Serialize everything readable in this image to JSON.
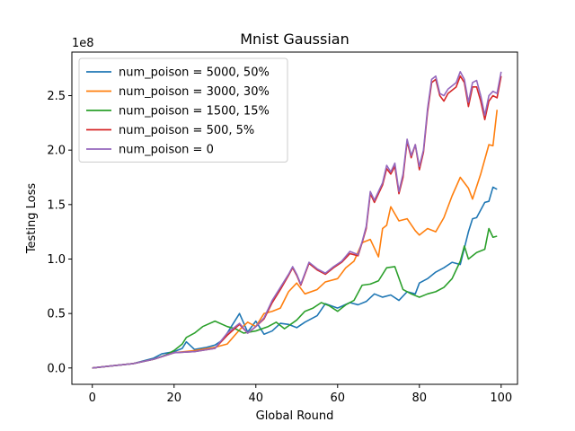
{
  "chart_data": {
    "type": "line",
    "title": "Mnist Gaussian",
    "xlabel": "Global Round",
    "ylabel": "Testing Loss",
    "y_offset_label": "1e8",
    "y_multiplier": 100000000,
    "xlim": [
      -5,
      104
    ],
    "ylim": [
      -15000000,
      290000000
    ],
    "x_ticks": [
      0,
      20,
      40,
      60,
      80,
      100
    ],
    "x_tick_labels": [
      "0",
      "20",
      "40",
      "60",
      "80",
      "100"
    ],
    "y_ticks": [
      0,
      50000000,
      100000000,
      150000000,
      200000000,
      250000000
    ],
    "y_tick_labels": [
      "0.0",
      "0.5",
      "1.0",
      "1.5",
      "2.0",
      "2.5"
    ],
    "legend_position": "top-left",
    "grid": false,
    "series": [
      {
        "name": "num_poison = 5000, 50%",
        "color": "#1f77b4",
        "keypoints": [
          [
            0,
            0
          ],
          [
            10,
            4000000
          ],
          [
            15,
            9000000
          ],
          [
            17,
            13000000
          ],
          [
            20,
            15000000
          ],
          [
            22,
            18000000
          ],
          [
            23,
            24000000
          ],
          [
            25,
            17000000
          ],
          [
            28,
            19000000
          ],
          [
            30,
            21000000
          ],
          [
            32,
            26000000
          ],
          [
            34,
            38000000
          ],
          [
            36,
            50000000
          ],
          [
            38,
            33000000
          ],
          [
            40,
            43000000
          ],
          [
            42,
            31000000
          ],
          [
            44,
            34000000
          ],
          [
            46,
            41000000
          ],
          [
            48,
            40000000
          ],
          [
            50,
            37000000
          ],
          [
            52,
            42000000
          ],
          [
            55,
            48000000
          ],
          [
            57,
            59000000
          ],
          [
            60,
            55000000
          ],
          [
            63,
            60000000
          ],
          [
            65,
            58000000
          ],
          [
            67,
            61000000
          ],
          [
            69,
            68000000
          ],
          [
            71,
            65000000
          ],
          [
            73,
            67000000
          ],
          [
            75,
            62000000
          ],
          [
            77,
            70000000
          ],
          [
            79,
            68000000
          ],
          [
            80,
            78000000
          ],
          [
            82,
            82000000
          ],
          [
            84,
            88000000
          ],
          [
            86,
            92000000
          ],
          [
            88,
            97000000
          ],
          [
            90,
            95000000
          ],
          [
            92,
            125000000
          ],
          [
            93,
            137000000
          ],
          [
            94,
            138000000
          ],
          [
            96,
            152000000
          ],
          [
            97,
            153000000
          ],
          [
            98,
            166000000
          ],
          [
            99,
            164000000
          ]
        ]
      },
      {
        "name": "num_poison = 3000, 30%",
        "color": "#ff7f0e",
        "keypoints": [
          [
            0,
            0
          ],
          [
            10,
            4000000
          ],
          [
            15,
            8000000
          ],
          [
            20,
            14000000
          ],
          [
            25,
            16000000
          ],
          [
            30,
            19000000
          ],
          [
            33,
            22000000
          ],
          [
            36,
            35000000
          ],
          [
            38,
            42000000
          ],
          [
            40,
            38000000
          ],
          [
            42,
            50000000
          ],
          [
            44,
            52000000
          ],
          [
            46,
            55000000
          ],
          [
            48,
            70000000
          ],
          [
            50,
            78000000
          ],
          [
            52,
            68000000
          ],
          [
            55,
            72000000
          ],
          [
            57,
            79000000
          ],
          [
            60,
            82000000
          ],
          [
            62,
            92000000
          ],
          [
            64,
            98000000
          ],
          [
            66,
            115000000
          ],
          [
            68,
            118000000
          ],
          [
            70,
            102000000
          ],
          [
            71,
            128000000
          ],
          [
            72,
            131000000
          ],
          [
            73,
            148000000
          ],
          [
            75,
            135000000
          ],
          [
            77,
            137000000
          ],
          [
            79,
            126000000
          ],
          [
            80,
            122000000
          ],
          [
            82,
            128000000
          ],
          [
            84,
            125000000
          ],
          [
            86,
            138000000
          ],
          [
            88,
            158000000
          ],
          [
            90,
            175000000
          ],
          [
            92,
            165000000
          ],
          [
            93,
            155000000
          ],
          [
            95,
            178000000
          ],
          [
            97,
            205000000
          ],
          [
            98,
            204000000
          ],
          [
            99,
            237000000
          ]
        ]
      },
      {
        "name": "num_poison = 1500, 15%",
        "color": "#2ca02c",
        "keypoints": [
          [
            0,
            0
          ],
          [
            10,
            4000000
          ],
          [
            15,
            8000000
          ],
          [
            18,
            12000000
          ],
          [
            20,
            16000000
          ],
          [
            22,
            22000000
          ],
          [
            23,
            28000000
          ],
          [
            25,
            32000000
          ],
          [
            27,
            38000000
          ],
          [
            30,
            43000000
          ],
          [
            33,
            38000000
          ],
          [
            35,
            36000000
          ],
          [
            37,
            32000000
          ],
          [
            40,
            34000000
          ],
          [
            43,
            38000000
          ],
          [
            45,
            42000000
          ],
          [
            47,
            36000000
          ],
          [
            50,
            44000000
          ],
          [
            52,
            52000000
          ],
          [
            54,
            55000000
          ],
          [
            56,
            60000000
          ],
          [
            58,
            57000000
          ],
          [
            60,
            52000000
          ],
          [
            62,
            58000000
          ],
          [
            64,
            62000000
          ],
          [
            66,
            76000000
          ],
          [
            68,
            77000000
          ],
          [
            70,
            80000000
          ],
          [
            72,
            92000000
          ],
          [
            74,
            93000000
          ],
          [
            76,
            72000000
          ],
          [
            78,
            68000000
          ],
          [
            80,
            65000000
          ],
          [
            82,
            68000000
          ],
          [
            84,
            70000000
          ],
          [
            86,
            74000000
          ],
          [
            88,
            82000000
          ],
          [
            90,
            98000000
          ],
          [
            91,
            112000000
          ],
          [
            92,
            100000000
          ],
          [
            94,
            106000000
          ],
          [
            96,
            109000000
          ],
          [
            97,
            128000000
          ],
          [
            98,
            120000000
          ],
          [
            99,
            121000000
          ]
        ]
      },
      {
        "name": "num_poison = 500, 5%",
        "color": "#d62728",
        "keypoints": [
          [
            0,
            0
          ],
          [
            10,
            4000000
          ],
          [
            15,
            8000000
          ],
          [
            20,
            14000000
          ],
          [
            25,
            15000000
          ],
          [
            30,
            18000000
          ],
          [
            33,
            30000000
          ],
          [
            36,
            40000000
          ],
          [
            38,
            32000000
          ],
          [
            40,
            38000000
          ],
          [
            42,
            45000000
          ],
          [
            44,
            60000000
          ],
          [
            46,
            72000000
          ],
          [
            48,
            85000000
          ],
          [
            49,
            92000000
          ],
          [
            50,
            85000000
          ],
          [
            51,
            76000000
          ],
          [
            53,
            96000000
          ],
          [
            55,
            90000000
          ],
          [
            57,
            86000000
          ],
          [
            59,
            92000000
          ],
          [
            61,
            97000000
          ],
          [
            63,
            105000000
          ],
          [
            65,
            103000000
          ],
          [
            66,
            115000000
          ],
          [
            67,
            128000000
          ],
          [
            68,
            160000000
          ],
          [
            69,
            152000000
          ],
          [
            71,
            168000000
          ],
          [
            72,
            183000000
          ],
          [
            73,
            178000000
          ],
          [
            74,
            185000000
          ],
          [
            75,
            160000000
          ],
          [
            76,
            175000000
          ],
          [
            77,
            208000000
          ],
          [
            78,
            193000000
          ],
          [
            79,
            205000000
          ],
          [
            80,
            182000000
          ],
          [
            81,
            198000000
          ],
          [
            82,
            235000000
          ],
          [
            83,
            262000000
          ],
          [
            84,
            265000000
          ],
          [
            85,
            250000000
          ],
          [
            86,
            245000000
          ],
          [
            87,
            252000000
          ],
          [
            89,
            258000000
          ],
          [
            90,
            268000000
          ],
          [
            91,
            262000000
          ],
          [
            92,
            240000000
          ],
          [
            93,
            258000000
          ],
          [
            94,
            258000000
          ],
          [
            95,
            245000000
          ],
          [
            96,
            228000000
          ],
          [
            97,
            245000000
          ],
          [
            98,
            250000000
          ],
          [
            99,
            248000000
          ],
          [
            100,
            268000000
          ]
        ]
      },
      {
        "name": "num_poison = 0",
        "color": "#9467bd",
        "keypoints": [
          [
            0,
            0
          ],
          [
            10,
            4000000
          ],
          [
            15,
            8000000
          ],
          [
            20,
            14000000
          ],
          [
            25,
            15000000
          ],
          [
            30,
            18000000
          ],
          [
            33,
            32000000
          ],
          [
            36,
            41000000
          ],
          [
            38,
            32000000
          ],
          [
            40,
            38000000
          ],
          [
            42,
            46000000
          ],
          [
            44,
            62000000
          ],
          [
            46,
            74000000
          ],
          [
            48,
            86000000
          ],
          [
            49,
            93000000
          ],
          [
            50,
            86000000
          ],
          [
            51,
            77000000
          ],
          [
            53,
            97000000
          ],
          [
            55,
            91000000
          ],
          [
            57,
            87000000
          ],
          [
            59,
            93000000
          ],
          [
            61,
            98000000
          ],
          [
            63,
            107000000
          ],
          [
            65,
            104000000
          ],
          [
            66,
            116000000
          ],
          [
            67,
            130000000
          ],
          [
            68,
            162000000
          ],
          [
            69,
            154000000
          ],
          [
            71,
            170000000
          ],
          [
            72,
            186000000
          ],
          [
            73,
            180000000
          ],
          [
            74,
            188000000
          ],
          [
            75,
            162000000
          ],
          [
            76,
            178000000
          ],
          [
            77,
            210000000
          ],
          [
            78,
            195000000
          ],
          [
            79,
            205000000
          ],
          [
            80,
            185000000
          ],
          [
            81,
            200000000
          ],
          [
            82,
            238000000
          ],
          [
            83,
            265000000
          ],
          [
            84,
            268000000
          ],
          [
            85,
            252000000
          ],
          [
            86,
            250000000
          ],
          [
            87,
            256000000
          ],
          [
            89,
            262000000
          ],
          [
            90,
            272000000
          ],
          [
            91,
            265000000
          ],
          [
            92,
            244000000
          ],
          [
            93,
            262000000
          ],
          [
            94,
            264000000
          ],
          [
            95,
            250000000
          ],
          [
            96,
            232000000
          ],
          [
            97,
            250000000
          ],
          [
            98,
            254000000
          ],
          [
            99,
            252000000
          ],
          [
            100,
            272000000
          ]
        ]
      }
    ]
  }
}
